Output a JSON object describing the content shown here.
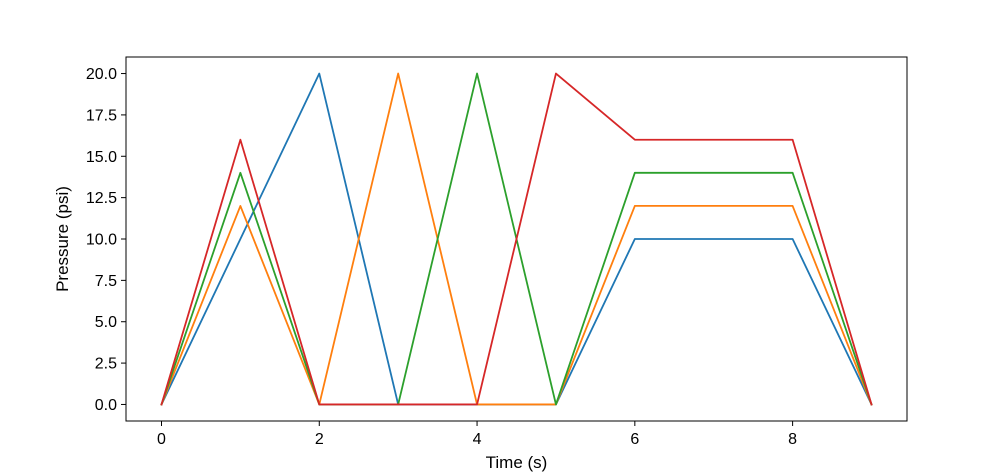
{
  "chart_data": {
    "type": "line",
    "title": "",
    "xlabel": "Time (s)",
    "ylabel": "Pressure (psi)",
    "xlim": [
      -0.45,
      9.45
    ],
    "ylim": [
      -1.0,
      21.0
    ],
    "xticks": [
      0,
      2,
      4,
      6,
      8
    ],
    "xtick_labels": [
      "0",
      "2",
      "4",
      "6",
      "8"
    ],
    "yticks": [
      0,
      2.5,
      5,
      7.5,
      10,
      12.5,
      15,
      17.5,
      20
    ],
    "ytick_labels": [
      "0.0",
      "2.5",
      "5.0",
      "7.5",
      "10.0",
      "12.5",
      "15.0",
      "17.5",
      "20.0"
    ],
    "grid": false,
    "x": [
      0,
      1,
      2,
      3,
      4,
      5,
      6,
      8,
      9
    ],
    "series": [
      {
        "color": "#1f77b4",
        "values": [
          0,
          10,
          20,
          0,
          0,
          0,
          10,
          10,
          0
        ]
      },
      {
        "color": "#ff7f0e",
        "values": [
          0,
          12,
          0,
          20,
          0,
          0,
          12,
          12,
          0
        ]
      },
      {
        "color": "#2ca02c",
        "values": [
          0,
          14,
          0,
          0,
          20,
          0,
          14,
          14,
          0
        ]
      },
      {
        "color": "#d62728",
        "values": [
          0,
          16,
          0,
          0,
          0,
          20,
          16,
          16,
          0
        ]
      }
    ]
  }
}
